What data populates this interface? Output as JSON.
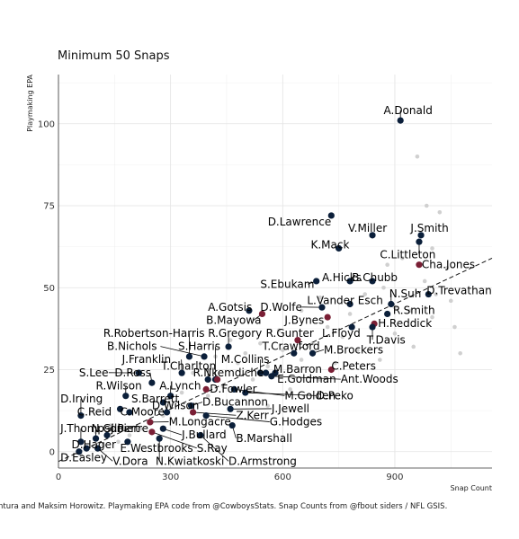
{
  "chart_data": {
    "type": "scatter",
    "title": "",
    "subtitle": "Minimum 50 Snaps",
    "xlabel": "Snap Count",
    "ylabel": "Playmaking EPA",
    "xlim": [
      0,
      1160
    ],
    "ylim": [
      -5,
      115
    ],
    "x_ticks": [
      0,
      300,
      600,
      900
    ],
    "y_ticks": [
      0,
      25,
      50,
      75,
      100
    ],
    "grid": true,
    "trend_line": {
      "style": "dashed",
      "x": [
        0,
        1160
      ],
      "y": [
        -3,
        59
      ]
    },
    "caption": "ntura and Maksim Horowitz. Playmaking EPA code from @CowboysStats. Snap Counts from @fbout siders / NFL GSIS.",
    "colors": {
      "navy": "#0b1f3a",
      "maroon": "#7a1f35",
      "background_points": "#d0d0d0"
    },
    "background_points": [
      [
        960,
        90
      ],
      [
        985,
        75
      ],
      [
        1020,
        73
      ],
      [
        1000,
        62
      ],
      [
        1040,
        56
      ],
      [
        920,
        59
      ],
      [
        880,
        57
      ],
      [
        1050,
        46
      ],
      [
        940,
        43
      ],
      [
        1000,
        41
      ],
      [
        1060,
        38
      ],
      [
        870,
        50
      ],
      [
        820,
        48
      ],
      [
        900,
        36
      ],
      [
        950,
        32
      ],
      [
        1075,
        30
      ],
      [
        780,
        42
      ],
      [
        760,
        35
      ],
      [
        720,
        38
      ],
      [
        680,
        33
      ],
      [
        650,
        28
      ],
      [
        600,
        31
      ],
      [
        560,
        26
      ],
      [
        520,
        22
      ],
      [
        480,
        27
      ],
      [
        440,
        20
      ],
      [
        400,
        17
      ],
      [
        360,
        24
      ],
      [
        330,
        18
      ],
      [
        300,
        14
      ],
      [
        280,
        11
      ],
      [
        250,
        9
      ],
      [
        220,
        7
      ],
      [
        190,
        5
      ],
      [
        160,
        3
      ],
      [
        140,
        8
      ],
      [
        120,
        2
      ],
      [
        100,
        6
      ],
      [
        80,
        1
      ],
      [
        60,
        -1
      ],
      [
        560,
        14
      ],
      [
        620,
        19
      ],
      [
        700,
        22
      ],
      [
        740,
        27
      ],
      [
        800,
        31
      ],
      [
        860,
        28
      ],
      [
        900,
        44
      ],
      [
        980,
        52
      ],
      [
        1010,
        48
      ],
      [
        700,
        47
      ],
      [
        650,
        43
      ],
      [
        590,
        37
      ],
      [
        540,
        33
      ],
      [
        500,
        30
      ],
      [
        460,
        34
      ],
      [
        420,
        29
      ]
    ],
    "highlight_points": [
      {
        "name": "A.Donald",
        "x": 915,
        "y": 101,
        "color": "navy"
      },
      {
        "name": "D.Lawrence",
        "x": 730,
        "y": 72,
        "color": "navy"
      },
      {
        "name": "V.Miller",
        "x": 840,
        "y": 66,
        "color": "navy"
      },
      {
        "name": "J.Smith",
        "x": 970,
        "y": 66,
        "color": "navy"
      },
      {
        "name": "K.Mack",
        "x": 750,
        "y": 62,
        "color": "navy"
      },
      {
        "name": "C.Littleton",
        "x": 965,
        "y": 64,
        "color": "navy"
      },
      {
        "name": "Cha.Jones",
        "x": 965,
        "y": 57,
        "color": "maroon"
      },
      {
        "name": "A.Hicks",
        "x": 780,
        "y": 52,
        "color": "navy"
      },
      {
        "name": "B.Chubb",
        "x": 840,
        "y": 52,
        "color": "navy"
      },
      {
        "name": "S.Ebukam",
        "x": 690,
        "y": 52,
        "color": "navy"
      },
      {
        "name": "D.Trevathan",
        "x": 990,
        "y": 48,
        "color": "navy"
      },
      {
        "name": "N.Suh",
        "x": 890,
        "y": 45,
        "color": "navy"
      },
      {
        "name": "L.Vander Esch",
        "x": 780,
        "y": 45,
        "color": "navy"
      },
      {
        "name": "D.Wolfe",
        "x": 705,
        "y": 44,
        "color": "navy"
      },
      {
        "name": "A.Gotsis",
        "x": 510,
        "y": 43,
        "color": "navy"
      },
      {
        "name": "R.Smith",
        "x": 880,
        "y": 42,
        "color": "navy"
      },
      {
        "name": "B.Mayowa",
        "x": 545,
        "y": 42,
        "color": "maroon"
      },
      {
        "name": "J.Bynes",
        "x": 720,
        "y": 41,
        "color": "maroon"
      },
      {
        "name": "H.Reddick",
        "x": 845,
        "y": 39,
        "color": "maroon"
      },
      {
        "name": "L.Floyd",
        "x": 785,
        "y": 38,
        "color": "navy"
      },
      {
        "name": "T.Davis",
        "x": 840,
        "y": 38,
        "color": "navy"
      },
      {
        "name": "R.Robertson-Harris",
        "x": 350,
        "y": 29,
        "color": "navy"
      },
      {
        "name": "R.Gregory",
        "x": 455,
        "y": 32,
        "color": "navy"
      },
      {
        "name": "R.Gunter",
        "x": 640,
        "y": 34,
        "color": "maroon"
      },
      {
        "name": "T.Crawford",
        "x": 630,
        "y": 30,
        "color": "navy"
      },
      {
        "name": "M.Brockers",
        "x": 680,
        "y": 30,
        "color": "navy"
      },
      {
        "name": "B.Nichols",
        "x": 390,
        "y": 29,
        "color": "navy"
      },
      {
        "name": "S.Harris",
        "x": 420,
        "y": 22,
        "color": "navy"
      },
      {
        "name": "J.Franklin",
        "x": 330,
        "y": 24,
        "color": "navy"
      },
      {
        "name": "T.Charlton",
        "x": 400,
        "y": 22,
        "color": "navy"
      },
      {
        "name": "M.Collins",
        "x": 540,
        "y": 24,
        "color": "navy"
      },
      {
        "name": "C.Peters",
        "x": 730,
        "y": 25,
        "color": "maroon"
      },
      {
        "name": "M.Barron",
        "x": 555,
        "y": 24,
        "color": "navy"
      },
      {
        "name": "R.Nkemdiche",
        "x": 425,
        "y": 22,
        "color": "maroon"
      },
      {
        "name": "E.Goldman",
        "x": 580,
        "y": 24,
        "color": "navy"
      },
      {
        "name": "Ant.Woods",
        "x": 570,
        "y": 23,
        "color": "navy"
      },
      {
        "name": "S.Lee",
        "x": 215,
        "y": 24,
        "color": "navy"
      },
      {
        "name": "D.Ross",
        "x": 250,
        "y": 21,
        "color": "navy"
      },
      {
        "name": "R.Wilson",
        "x": 180,
        "y": 17,
        "color": "navy"
      },
      {
        "name": "A.Lynch",
        "x": 300,
        "y": 17,
        "color": "navy"
      },
      {
        "name": "D.Fowler",
        "x": 395,
        "y": 19,
        "color": "maroon"
      },
      {
        "name": "M.Golden",
        "x": 470,
        "y": 19,
        "color": "navy"
      },
      {
        "name": "D.Peko",
        "x": 500,
        "y": 18,
        "color": "navy"
      },
      {
        "name": "D.Irving",
        "x": 60,
        "y": 11,
        "color": "navy"
      },
      {
        "name": "S.Barrett",
        "x": 280,
        "y": 15,
        "color": "navy"
      },
      {
        "name": "D.Bucannon",
        "x": 355,
        "y": 14,
        "color": "navy"
      },
      {
        "name": "D.Wilson",
        "x": 290,
        "y": 12,
        "color": "navy"
      },
      {
        "name": "J.Jewell",
        "x": 460,
        "y": 13,
        "color": "navy"
      },
      {
        "name": "C.Reid",
        "x": 165,
        "y": 13,
        "color": "navy"
      },
      {
        "name": "C.Moore",
        "x": 190,
        "y": 12,
        "color": "navy"
      },
      {
        "name": "Z.Kerr",
        "x": 360,
        "y": 12,
        "color": "maroon"
      },
      {
        "name": "M.Longacre",
        "x": 245,
        "y": 9,
        "color": "maroon"
      },
      {
        "name": "G.Hodges",
        "x": 395,
        "y": 11,
        "color": "navy"
      },
      {
        "name": "J.Thompson",
        "x": 60,
        "y": 3,
        "color": "navy"
      },
      {
        "name": "N.Gilbert",
        "x": 100,
        "y": 4,
        "color": "navy"
      },
      {
        "name": "J.Pierre",
        "x": 130,
        "y": 5,
        "color": "navy"
      },
      {
        "name": "J.Bullard",
        "x": 280,
        "y": 7,
        "color": "navy"
      },
      {
        "name": "B.Marshall",
        "x": 465,
        "y": 8,
        "color": "navy"
      },
      {
        "name": "D.Hager",
        "x": 75,
        "y": 1,
        "color": "navy"
      },
      {
        "name": "E.Westbrooks",
        "x": 185,
        "y": 3,
        "color": "navy"
      },
      {
        "name": "S.Ray",
        "x": 250,
        "y": 6,
        "color": "maroon"
      },
      {
        "name": "D.Easley",
        "x": 55,
        "y": 0,
        "color": "navy"
      },
      {
        "name": "V.Dora",
        "x": 105,
        "y": 1,
        "color": "navy"
      },
      {
        "name": "N.Kwiatkoski",
        "x": 270,
        "y": 4,
        "color": "navy"
      },
      {
        "name": "D.Armstrong",
        "x": 380,
        "y": 5,
        "color": "navy"
      }
    ],
    "labels": [
      {
        "text": "A.Donald",
        "x": 870,
        "y": 103,
        "anchor": "start",
        "point": 0
      },
      {
        "text": "D.Lawrence",
        "x": 560,
        "y": 69,
        "anchor": "start",
        "point": 1
      },
      {
        "text": "V.Miller",
        "x": 775,
        "y": 67,
        "anchor": "start",
        "point": 2
      },
      {
        "text": "J.Smith",
        "x": 942,
        "y": 67,
        "anchor": "start",
        "point": 3
      },
      {
        "text": "K.Mack",
        "x": 675,
        "y": 62,
        "anchor": "start",
        "point": 4
      },
      {
        "text": "C.Littleton",
        "x": 860,
        "y": 59,
        "anchor": "start",
        "point": 5
      },
      {
        "text": "Cha.Jones",
        "x": 972,
        "y": 56,
        "anchor": "start",
        "point": 6
      },
      {
        "text": "A.Hicks",
        "x": 705,
        "y": 52,
        "anchor": "start",
        "point": 7
      },
      {
        "text": "B.Chubb",
        "x": 785,
        "y": 52,
        "anchor": "start",
        "point": 8
      },
      {
        "text": "S.Ebukam",
        "x": 540,
        "y": 50,
        "anchor": "start",
        "point": 9
      },
      {
        "text": "D.Trevathan",
        "x": 985,
        "y": 48,
        "anchor": "start",
        "point": 10
      },
      {
        "text": "N.Suh",
        "x": 885,
        "y": 47,
        "anchor": "start",
        "point": 11
      },
      {
        "text": "L.Vander Esch",
        "x": 665,
        "y": 45,
        "anchor": "start",
        "point": 12
      },
      {
        "text": "D.Wolfe",
        "x": 540,
        "y": 43,
        "anchor": "start",
        "point": 13
      },
      {
        "text": "A.Gotsis",
        "x": 400,
        "y": 43,
        "anchor": "start",
        "point": 14
      },
      {
        "text": "R.Smith",
        "x": 895,
        "y": 42,
        "anchor": "start",
        "point": 15
      },
      {
        "text": "B.Mayowa",
        "x": 395,
        "y": 39,
        "anchor": "start",
        "point": 16
      },
      {
        "text": "J.Bynes",
        "x": 605,
        "y": 39,
        "anchor": "start",
        "point": 17
      },
      {
        "text": "H.Reddick",
        "x": 855,
        "y": 38,
        "anchor": "start",
        "point": 18
      },
      {
        "text": "L.Floyd",
        "x": 705,
        "y": 35,
        "anchor": "start",
        "point": 19
      },
      {
        "text": "T.Davis",
        "x": 825,
        "y": 33,
        "anchor": "start",
        "point": 20
      },
      {
        "text": "R.Robertson-Harris",
        "x": 120,
        "y": 35,
        "anchor": "start",
        "point": 21
      },
      {
        "text": "R.Gregory",
        "x": 400,
        "y": 35,
        "anchor": "start",
        "point": 22
      },
      {
        "text": "R.Gunter",
        "x": 555,
        "y": 35,
        "anchor": "start",
        "point": 23
      },
      {
        "text": "T.Crawford",
        "x": 545,
        "y": 31,
        "anchor": "start",
        "point": 24
      },
      {
        "text": "M.Brockers",
        "x": 710,
        "y": 30,
        "anchor": "start",
        "point": 25
      },
      {
        "text": "B.Nichols",
        "x": 130,
        "y": 31,
        "anchor": "start",
        "point": 26
      },
      {
        "text": "S.Harris",
        "x": 320,
        "y": 31,
        "anchor": "start",
        "point": 27
      },
      {
        "text": "J.Franklin",
        "x": 170,
        "y": 27,
        "anchor": "start",
        "point": 28
      },
      {
        "text": "T.Charlton",
        "x": 275,
        "y": 25,
        "anchor": "start",
        "point": 29
      },
      {
        "text": "M.Collins",
        "x": 435,
        "y": 27,
        "anchor": "start",
        "point": 30
      },
      {
        "text": "C.Peters",
        "x": 730,
        "y": 25,
        "anchor": "start",
        "point": 31
      },
      {
        "text": "M.Barron",
        "x": 575,
        "y": 24,
        "anchor": "start",
        "point": 32
      },
      {
        "text": "R.Nkemdiche",
        "x": 360,
        "y": 23,
        "anchor": "start",
        "point": 33
      },
      {
        "text": "E.Goldman",
        "x": 585,
        "y": 21,
        "anchor": "start",
        "point": 34
      },
      {
        "text": "Ant.Woods",
        "x": 755,
        "y": 21,
        "anchor": "start",
        "point": 35
      },
      {
        "text": "S.Lee",
        "x": 55,
        "y": 23,
        "anchor": "start",
        "point": 36
      },
      {
        "text": "D.Ross",
        "x": 150,
        "y": 23,
        "anchor": "start",
        "point": 37
      },
      {
        "text": "R.Wilson",
        "x": 100,
        "y": 19,
        "anchor": "start",
        "point": 38
      },
      {
        "text": "A.Lynch",
        "x": 270,
        "y": 19,
        "anchor": "start",
        "point": 39
      },
      {
        "text": "D.Fowler",
        "x": 405,
        "y": 18,
        "anchor": "start",
        "point": 40
      },
      {
        "text": "M.Golden",
        "x": 605,
        "y": 16,
        "anchor": "start",
        "point": 41
      },
      {
        "text": "D.Peko",
        "x": 690,
        "y": 16,
        "anchor": "start",
        "point": 42
      },
      {
        "text": "D.Irving",
        "x": 5,
        "y": 15,
        "anchor": "start",
        "point": 43
      },
      {
        "text": "S.Barrett",
        "x": 195,
        "y": 15,
        "anchor": "start",
        "point": 44
      },
      {
        "text": "D.Bucannon",
        "x": 385,
        "y": 14,
        "anchor": "start",
        "point": 45
      },
      {
        "text": "D.Wilson",
        "x": 250,
        "y": 13,
        "anchor": "start",
        "point": 46
      },
      {
        "text": "J.Jewell",
        "x": 570,
        "y": 12,
        "anchor": "start",
        "point": 47
      },
      {
        "text": "C.Reid",
        "x": 50,
        "y": 11,
        "anchor": "start",
        "point": 48
      },
      {
        "text": "C.Moore",
        "x": 165,
        "y": 11,
        "anchor": "start",
        "point": 49
      },
      {
        "text": "Z.Kerr",
        "x": 475,
        "y": 10,
        "anchor": "start",
        "point": 50
      },
      {
        "text": "M.Longacre",
        "x": 295,
        "y": 8,
        "anchor": "start",
        "point": 51
      },
      {
        "text": "G.Hodges",
        "x": 565,
        "y": 8,
        "anchor": "start",
        "point": 52
      },
      {
        "text": "J.Thompson",
        "x": 5,
        "y": 6,
        "anchor": "start",
        "point": 53
      },
      {
        "text": "N.Gilbert",
        "x": 88,
        "y": 6,
        "anchor": "start",
        "point": 54
      },
      {
        "text": "J.Pierre",
        "x": 140,
        "y": 6,
        "anchor": "start",
        "point": 55
      },
      {
        "text": "J.Bullard",
        "x": 330,
        "y": 4,
        "anchor": "start",
        "point": 56
      },
      {
        "text": "B.Marshall",
        "x": 475,
        "y": 3,
        "anchor": "start",
        "point": 57
      },
      {
        "text": "D.Hager",
        "x": 35,
        "y": 1,
        "anchor": "start",
        "point": 58
      },
      {
        "text": "E.Westbrooks",
        "x": 165,
        "y": 0,
        "anchor": "start",
        "point": 59
      },
      {
        "text": "S.Ray",
        "x": 370,
        "y": 0,
        "anchor": "start",
        "point": 60
      },
      {
        "text": "D.Easley",
        "x": 5,
        "y": -3,
        "anchor": "start",
        "point": 61
      },
      {
        "text": "V.Dora",
        "x": 145,
        "y": -4,
        "anchor": "start",
        "point": 62
      },
      {
        "text": "N.Kwiatkoski",
        "x": 260,
        "y": -4,
        "anchor": "start",
        "point": 63
      },
      {
        "text": "D.Armstrong",
        "x": 455,
        "y": -4,
        "anchor": "start",
        "point": 64
      }
    ]
  }
}
